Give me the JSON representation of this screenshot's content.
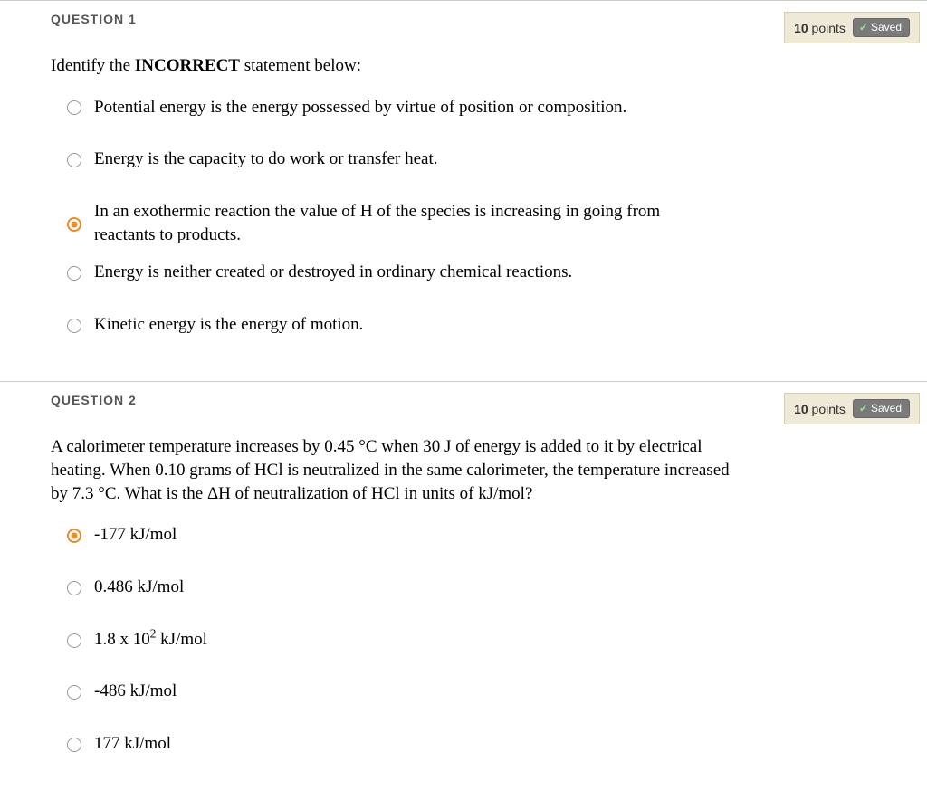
{
  "questions": [
    {
      "header": "QUESTION 1",
      "points_value": "10",
      "points_label": "points",
      "saved_label": "Saved",
      "prompt_pre": "Identify the ",
      "prompt_bold": "INCORRECT",
      "prompt_post": " statement below:",
      "options": [
        {
          "text": "Potential energy is the energy possessed by virtue of position or composition.",
          "selected": false
        },
        {
          "text": "Energy is the capacity to do work or transfer heat.",
          "selected": false
        },
        {
          "text": "In an exothermic reaction the value of H of the species is increasing in going from reactants to products.",
          "selected": true
        },
        {
          "text": "Energy is neither created or destroyed in ordinary chemical reactions.",
          "selected": false
        },
        {
          "text": "Kinetic energy is the energy of motion.",
          "selected": false
        }
      ]
    },
    {
      "header": "QUESTION 2",
      "points_value": "10",
      "points_label": "points",
      "saved_label": "Saved",
      "prompt_full": "A calorimeter temperature increases by 0.45 °C when 30 J of energy is added to it by electrical heating. When 0.10 grams of HCl is neutralized in the same calorimeter, the temperature increased by 7.3 °C. What is the ΔH of neutralization of HCl in units of kJ/mol?",
      "options": [
        {
          "text": "-177 kJ/mol",
          "selected": true
        },
        {
          "text": "0.486 kJ/mol",
          "selected": false
        },
        {
          "html": "1.8 x 10<sup>2</sup> kJ/mol",
          "selected": false
        },
        {
          "text": "-486 kJ/mol",
          "selected": false
        },
        {
          "text": "177 kJ/mol",
          "selected": false
        }
      ]
    }
  ]
}
